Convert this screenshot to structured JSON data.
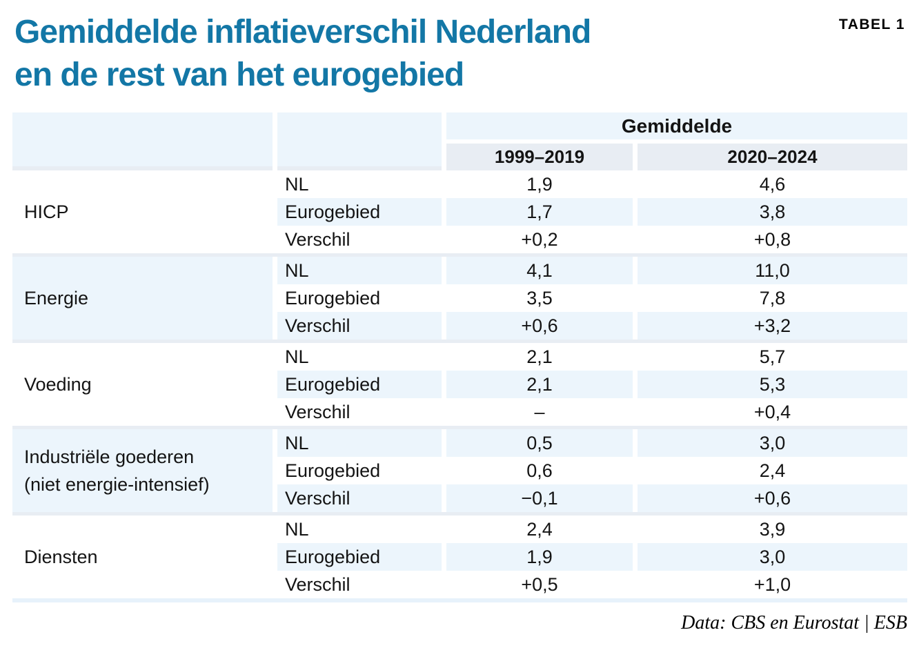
{
  "page": {
    "tag": "TABEL 1",
    "title_line1": "Gemiddelde inflatieverschil Nederland",
    "title_line2": "en de rest van het eurogebied",
    "source": "Data: CBS en Eurostat | ESB"
  },
  "colors": {
    "title_blue": "#1377A6",
    "row_tint": "#ECF5FC",
    "header_band": "#E8EDF3",
    "bottom_strip": "#E7F2FB"
  },
  "chart_data": {
    "type": "table",
    "title": "Gemiddelde inflatieverschil Nederland en de rest van het eurogebied",
    "tag": "TABEL 1",
    "column_group_header": "Gemiddelde",
    "columns": [
      "1999–2019",
      "2020–2024"
    ],
    "row_labels": [
      "NL",
      "Eurogebied",
      "Verschil"
    ],
    "groups": [
      {
        "category": "HICP",
        "rows": [
          [
            "NL",
            "1,9",
            "4,6"
          ],
          [
            "Eurogebied",
            "1,7",
            "3,8"
          ],
          [
            "Verschil",
            "+0,2",
            "+0,8"
          ]
        ]
      },
      {
        "category": "Energie",
        "rows": [
          [
            "NL",
            "4,1",
            "11,0"
          ],
          [
            "Eurogebied",
            "3,5",
            "7,8"
          ],
          [
            "Verschil",
            "+0,6",
            "+3,2"
          ]
        ]
      },
      {
        "category": "Voeding",
        "rows": [
          [
            "NL",
            "2,1",
            "5,7"
          ],
          [
            "Eurogebied",
            "2,1",
            "5,3"
          ],
          [
            "Verschil",
            "–",
            "+0,4"
          ]
        ]
      },
      {
        "category": "Industriële goederen\n(niet energie-intensief)",
        "rows": [
          [
            "NL",
            "0,5",
            "3,0"
          ],
          [
            "Eurogebied",
            "0,6",
            "2,4"
          ],
          [
            "Verschil",
            "−0,1",
            "+0,6"
          ]
        ]
      },
      {
        "category": "Diensten",
        "rows": [
          [
            "NL",
            "2,4",
            "3,9"
          ],
          [
            "Eurogebied",
            "1,9",
            "3,0"
          ],
          [
            "Verschil",
            "+0,5",
            "+1,0"
          ]
        ]
      }
    ],
    "source": "Data: CBS en Eurostat | ESB"
  }
}
